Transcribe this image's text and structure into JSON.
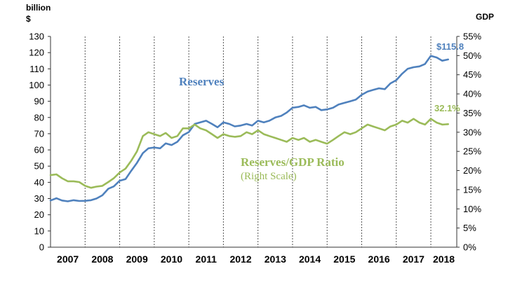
{
  "chart_data": {
    "type": "line",
    "left_axis": {
      "unit_line1": "billion",
      "unit_line2": "$",
      "range": [
        0,
        130
      ],
      "ticks": [
        "0",
        "10",
        "20",
        "30",
        "40",
        "50",
        "60",
        "70",
        "80",
        "90",
        "100",
        "110",
        "120",
        "130"
      ]
    },
    "right_axis": {
      "unit": "GDP",
      "range": [
        0,
        55
      ],
      "ticks": [
        "0%",
        "5%",
        "10%",
        "15%",
        "20%",
        "25%",
        "30%",
        "35%",
        "40%",
        "45%",
        "50%",
        "55%"
      ]
    },
    "x_axis": {
      "categories": [
        "2007",
        "2008",
        "2009",
        "2010",
        "2011",
        "2012",
        "2013",
        "2014",
        "2015",
        "2016",
        "2017",
        "2018"
      ],
      "range": [
        2007.0,
        2018.75
      ]
    },
    "series": [
      {
        "name": "Reserves",
        "axis": "left",
        "color": "#4F81BD",
        "end_label": "$115.8",
        "points": [
          [
            2007.0,
            28.8
          ],
          [
            2007.17,
            30.2
          ],
          [
            2007.33,
            28.8
          ],
          [
            2007.5,
            28.3
          ],
          [
            2007.67,
            29.0
          ],
          [
            2007.83,
            28.5
          ],
          [
            2008.0,
            28.6
          ],
          [
            2008.17,
            29.0
          ],
          [
            2008.33,
            30.0
          ],
          [
            2008.5,
            32.0
          ],
          [
            2008.67,
            36.0
          ],
          [
            2008.83,
            37.5
          ],
          [
            2009.0,
            41.0
          ],
          [
            2009.17,
            42.0
          ],
          [
            2009.33,
            47.0
          ],
          [
            2009.5,
            52.0
          ],
          [
            2009.67,
            58.0
          ],
          [
            2009.83,
            61.0
          ],
          [
            2010.0,
            61.5
          ],
          [
            2010.17,
            61.0
          ],
          [
            2010.33,
            64.0
          ],
          [
            2010.5,
            63.0
          ],
          [
            2010.67,
            65.0
          ],
          [
            2010.83,
            69.0
          ],
          [
            2011.0,
            71.0
          ],
          [
            2011.17,
            76.0
          ],
          [
            2011.33,
            77.0
          ],
          [
            2011.5,
            78.0
          ],
          [
            2011.67,
            76.0
          ],
          [
            2011.83,
            74.0
          ],
          [
            2012.0,
            77.0
          ],
          [
            2012.17,
            76.0
          ],
          [
            2012.33,
            74.5
          ],
          [
            2012.5,
            75.0
          ],
          [
            2012.67,
            76.0
          ],
          [
            2012.83,
            75.0
          ],
          [
            2013.0,
            78.0
          ],
          [
            2013.17,
            77.0
          ],
          [
            2013.33,
            78.0
          ],
          [
            2013.5,
            80.0
          ],
          [
            2013.67,
            81.0
          ],
          [
            2013.83,
            83.0
          ],
          [
            2014.0,
            86.0
          ],
          [
            2014.17,
            86.5
          ],
          [
            2014.33,
            87.5
          ],
          [
            2014.5,
            86.0
          ],
          [
            2014.67,
            86.5
          ],
          [
            2014.83,
            84.5
          ],
          [
            2015.0,
            85.0
          ],
          [
            2015.17,
            86.0
          ],
          [
            2015.33,
            88.0
          ],
          [
            2015.5,
            89.0
          ],
          [
            2015.67,
            90.0
          ],
          [
            2015.83,
            91.0
          ],
          [
            2016.0,
            94.0
          ],
          [
            2016.17,
            96.0
          ],
          [
            2016.33,
            97.0
          ],
          [
            2016.5,
            98.0
          ],
          [
            2016.67,
            97.5
          ],
          [
            2016.83,
            101.0
          ],
          [
            2017.0,
            103.0
          ],
          [
            2017.17,
            107.0
          ],
          [
            2017.33,
            110.0
          ],
          [
            2017.5,
            111.0
          ],
          [
            2017.67,
            111.5
          ],
          [
            2017.83,
            113.0
          ],
          [
            2018.0,
            118.0
          ],
          [
            2018.17,
            117.0
          ],
          [
            2018.33,
            115.0
          ],
          [
            2018.5,
            115.8
          ]
        ]
      },
      {
        "name": "Reserves/GDP Ratio",
        "name_sub": "(Right Scale)",
        "axis": "right",
        "color": "#9BBB59",
        "end_label": "32.1%",
        "points": [
          [
            2007.0,
            18.8
          ],
          [
            2007.17,
            19.0
          ],
          [
            2007.33,
            18.0
          ],
          [
            2007.5,
            17.2
          ],
          [
            2007.67,
            17.2
          ],
          [
            2007.83,
            17.0
          ],
          [
            2008.0,
            16.0
          ],
          [
            2008.17,
            15.5
          ],
          [
            2008.33,
            15.8
          ],
          [
            2008.5,
            16.0
          ],
          [
            2008.67,
            17.0
          ],
          [
            2008.83,
            18.0
          ],
          [
            2009.0,
            19.5
          ],
          [
            2009.17,
            20.5
          ],
          [
            2009.33,
            22.5
          ],
          [
            2009.5,
            25.0
          ],
          [
            2009.67,
            29.0
          ],
          [
            2009.83,
            30.0
          ],
          [
            2010.0,
            29.5
          ],
          [
            2010.17,
            29.0
          ],
          [
            2010.33,
            29.8
          ],
          [
            2010.5,
            28.5
          ],
          [
            2010.67,
            29.0
          ],
          [
            2010.83,
            31.0
          ],
          [
            2011.0,
            31.0
          ],
          [
            2011.17,
            32.0
          ],
          [
            2011.33,
            31.0
          ],
          [
            2011.5,
            30.5
          ],
          [
            2011.67,
            29.5
          ],
          [
            2011.83,
            28.5
          ],
          [
            2012.0,
            29.5
          ],
          [
            2012.17,
            29.0
          ],
          [
            2012.33,
            28.8
          ],
          [
            2012.5,
            29.0
          ],
          [
            2012.67,
            30.0
          ],
          [
            2012.83,
            29.5
          ],
          [
            2013.0,
            30.5
          ],
          [
            2013.17,
            29.5
          ],
          [
            2013.33,
            29.0
          ],
          [
            2013.5,
            28.5
          ],
          [
            2013.67,
            28.0
          ],
          [
            2013.83,
            27.5
          ],
          [
            2014.0,
            28.5
          ],
          [
            2014.17,
            28.0
          ],
          [
            2014.33,
            28.5
          ],
          [
            2014.5,
            27.5
          ],
          [
            2014.67,
            28.0
          ],
          [
            2014.83,
            27.5
          ],
          [
            2015.0,
            27.0
          ],
          [
            2015.17,
            28.0
          ],
          [
            2015.33,
            29.0
          ],
          [
            2015.5,
            30.0
          ],
          [
            2015.67,
            29.5
          ],
          [
            2015.83,
            30.0
          ],
          [
            2016.0,
            31.0
          ],
          [
            2016.17,
            32.0
          ],
          [
            2016.33,
            31.5
          ],
          [
            2016.5,
            31.0
          ],
          [
            2016.67,
            30.5
          ],
          [
            2016.83,
            31.5
          ],
          [
            2017.0,
            32.0
          ],
          [
            2017.17,
            33.0
          ],
          [
            2017.33,
            32.5
          ],
          [
            2017.5,
            33.5
          ],
          [
            2017.67,
            32.5
          ],
          [
            2017.83,
            32.0
          ],
          [
            2018.0,
            33.5
          ],
          [
            2018.17,
            32.5
          ],
          [
            2018.33,
            32.0
          ],
          [
            2018.5,
            32.1
          ]
        ]
      }
    ],
    "gridlines": {
      "vertical_year_separators": true,
      "horizontal": false
    }
  }
}
